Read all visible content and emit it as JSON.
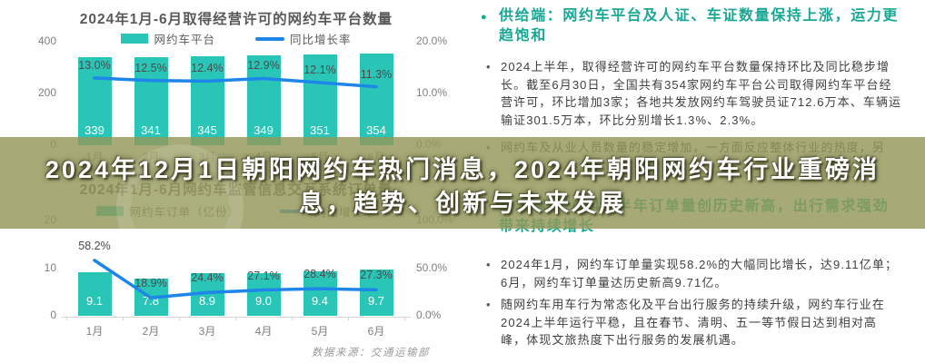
{
  "banner": {
    "title_line1": "2024年12月1日朝阳网约车热门消息，2024年朝阳网约车行业重磅消",
    "title_line2": "息，趋势、创新与未来发展"
  },
  "colors": {
    "bar_teal": "#29c6b7",
    "line_blue": "#1d86e8",
    "section_header_teal": "#18a795",
    "banner_olive": "#a9ac79"
  },
  "chart_data": [
    {
      "type": "bar+line",
      "title": "2024年1月-6月取得经营许可的网约车平台数量",
      "categories": [
        "1月",
        "2月",
        "3月",
        "4月",
        "5月",
        "6月"
      ],
      "series": [
        {
          "name": "网约车平台",
          "type": "bar",
          "values": [
            339,
            341,
            345,
            349,
            351,
            354
          ],
          "labels": [
            "339",
            "341",
            "345",
            "349",
            "351",
            "354"
          ]
        },
        {
          "name": "同比增长率",
          "type": "line",
          "unit": "%",
          "values": [
            13.0,
            12.5,
            12.4,
            12.9,
            12.1,
            11.3
          ],
          "labels": [
            "13.0%",
            "12.5%",
            "12.4%",
            "12.9%",
            "12.1%",
            "11.3%"
          ]
        }
      ],
      "left_axis": {
        "ticks": [
          "0",
          "200",
          "400"
        ],
        "max": 400
      },
      "right_axis": {
        "ticks": [
          "0.0%",
          "10.0%",
          "20.0%"
        ],
        "max": 20
      },
      "legend_position": "top",
      "grid": false
    },
    {
      "type": "bar+line",
      "title": "2024年1月-6月网约车监管信息交互系统订单量",
      "categories": [
        "1月",
        "2月",
        "3月",
        "4月",
        "5月",
        "6月"
      ],
      "series": [
        {
          "name": "网约车订单（亿份）",
          "type": "bar",
          "values": [
            9.1,
            7.8,
            8.9,
            9.0,
            9.4,
            9.7
          ],
          "labels": [
            "9.1",
            "7.8",
            "8.9",
            "9.0",
            "9.4",
            "9.7"
          ]
        },
        {
          "name": "同比增长率",
          "type": "line",
          "unit": "%",
          "values": [
            58.2,
            18.9,
            24.4,
            27.1,
            28.4,
            27.3
          ],
          "labels": [
            "58.2%",
            "18.9%",
            "24.4%",
            "27.1%",
            "28.4%",
            "27.3%"
          ]
        }
      ],
      "left_axis": {
        "ticks": [
          "0",
          "10",
          "20"
        ],
        "max": 20
      },
      "right_axis": {
        "ticks": [
          "0.0%",
          "50.0%",
          "100.0%"
        ],
        "max": 100
      },
      "legend_position": "top",
      "grid": false
    }
  ],
  "right_panel": {
    "sections": [
      {
        "header": "供给端：网约车平台及人证、车证数量保持上涨，运力更趋饱和",
        "bullets": [
          "2024上半年，取得经营许可的网约车平台数量保持环比及同比稳步增长。截至6月30日，全国共有354家网约车平台公司取得网约车平台经营许可，环比增加3家；各地共发放网约车驾驶员证712.6万本、车辆运输证301.5万本，环比分别增长1.3%、2.3%。",
          "网约车及从业人员数量的稳定增加，一方面反应整体行业的热度，另"
        ]
      },
      {
        "header": "需求端：2024上半年订单量创历史新高，出行需求强劲带来持续增长",
        "bullets": [
          "2024年1月，网约车订单量实现58.2%的大幅同比增长，达9.11亿单；6月，网约车订单量达历史新高9.71亿。",
          "随网约车用车行为常态化及平台出行服务的持续升级，网约车行业在2024上半年运行平稳，且在春节、清明、五一等节假日达到相对高峰，体现文旅热度下出行服务的发展机遇。"
        ]
      }
    ]
  },
  "footer": {
    "source_note": "数据来源：交通运输部"
  }
}
